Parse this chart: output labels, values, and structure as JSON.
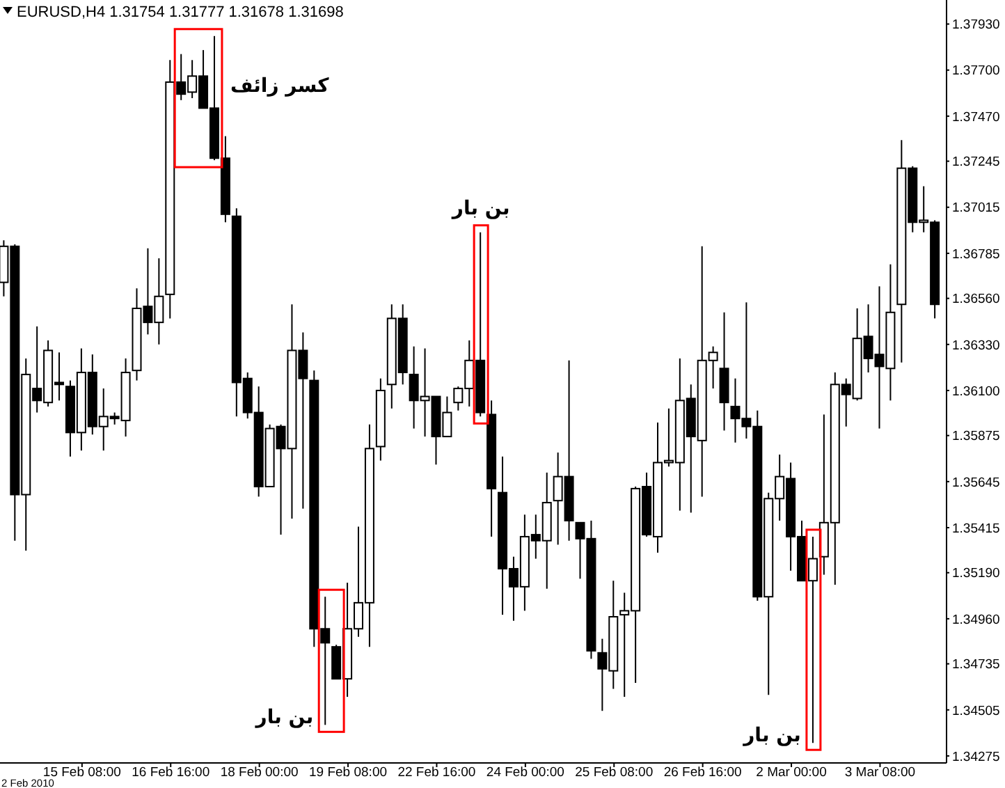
{
  "chart_data": {
    "type": "candlestick",
    "title": "EURUSD,H4  1.31754 1.31777 1.31678 1.31698",
    "categories": [
      null,
      null,
      null,
      null,
      null,
      null,
      null,
      "15 Feb 08:00",
      null,
      null,
      null,
      null,
      null,
      null,
      null,
      "16 Feb 16:00",
      null,
      null,
      null,
      null,
      null,
      null,
      null,
      "18 Feb 00:00",
      null,
      null,
      null,
      null,
      null,
      null,
      null,
      "19 Feb 08:00",
      null,
      null,
      null,
      null,
      null,
      null,
      null,
      "22 Feb 16:00",
      null,
      null,
      null,
      null,
      null,
      null,
      null,
      "24 Feb 00:00",
      null,
      null,
      null,
      null,
      null,
      null,
      null,
      "25 Feb 08:00",
      null,
      null,
      null,
      null,
      null,
      null,
      null,
      "26 Feb 16:00",
      null,
      null,
      null,
      null,
      null,
      null,
      null,
      "2 Mar 00:00",
      null,
      null,
      null,
      null,
      null,
      null,
      null,
      "3 Mar 08:00",
      null,
      null,
      null,
      null,
      null
    ],
    "ohlc": [
      [
        1.3664,
        1.3685,
        1.3657,
        1.3682
      ],
      [
        1.3682,
        1.3683,
        1.3535,
        1.3558
      ],
      [
        1.3558,
        1.3626,
        1.353,
        1.3618
      ],
      [
        1.3611,
        1.3642,
        1.3599,
        1.3605
      ],
      [
        1.3604,
        1.3635,
        1.3602,
        1.363
      ],
      [
        1.3614,
        1.3629,
        1.3605,
        1.3613
      ],
      [
        1.3612,
        1.3615,
        1.3577,
        1.3589
      ],
      [
        1.3589,
        1.3631,
        1.358,
        1.3619
      ],
      [
        1.3619,
        1.3628,
        1.3588,
        1.3592
      ],
      [
        1.3592,
        1.3611,
        1.358,
        1.3597
      ],
      [
        1.3597,
        1.3599,
        1.3593,
        1.3596
      ],
      [
        1.3595,
        1.3626,
        1.3587,
        1.3619
      ],
      [
        1.362,
        1.3661,
        1.3615,
        1.3651
      ],
      [
        1.3652,
        1.3681,
        1.3638,
        1.3644
      ],
      [
        1.3644,
        1.3676,
        1.3633,
        1.3657
      ],
      [
        1.3658,
        1.3775,
        1.3646,
        1.3764
      ],
      [
        1.3764,
        1.3778,
        1.3755,
        1.3758
      ],
      [
        1.3759,
        1.3775,
        1.3756,
        1.3767
      ],
      [
        1.3767,
        1.378,
        1.3751,
        1.3751
      ],
      [
        1.3751,
        1.3787,
        1.3725,
        1.3726
      ],
      [
        1.3726,
        1.3737,
        1.3694,
        1.3698
      ],
      [
        1.3697,
        1.3701,
        1.3597,
        1.3614
      ],
      [
        1.3616,
        1.3619,
        1.3596,
        1.3599
      ],
      [
        1.3599,
        1.3612,
        1.3557,
        1.3562
      ],
      [
        1.3562,
        1.3593,
        1.3562,
        1.3591
      ],
      [
        1.3592,
        1.3593,
        1.3538,
        1.3581
      ],
      [
        1.3581,
        1.3653,
        1.3546,
        1.363
      ],
      [
        1.363,
        1.3639,
        1.3551,
        1.3616
      ],
      [
        1.3615,
        1.362,
        1.3482,
        1.3491
      ],
      [
        1.3491,
        1.3507,
        1.3443,
        1.3484
      ],
      [
        1.3482,
        1.3483,
        1.3466,
        1.3466
      ],
      [
        1.3466,
        1.3514,
        1.3457,
        1.3491
      ],
      [
        1.3491,
        1.3542,
        1.3487,
        1.3504
      ],
      [
        1.3504,
        1.3593,
        1.3482,
        1.3581
      ],
      [
        1.3582,
        1.3616,
        1.3575,
        1.361
      ],
      [
        1.3613,
        1.3653,
        1.3601,
        1.3646
      ],
      [
        1.3646,
        1.3653,
        1.3613,
        1.3619
      ],
      [
        1.3618,
        1.3632,
        1.3591,
        1.3605
      ],
      [
        1.3605,
        1.3631,
        1.3587,
        1.3607
      ],
      [
        1.3607,
        1.3607,
        1.3573,
        1.3587
      ],
      [
        1.3587,
        1.3607,
        1.3587,
        1.3599
      ],
      [
        1.3604,
        1.3612,
        1.36,
        1.3611
      ],
      [
        1.3611,
        1.3635,
        1.3602,
        1.3625
      ],
      [
        1.3625,
        1.3689,
        1.3597,
        1.3599
      ],
      [
        1.3598,
        1.3605,
        1.3537,
        1.3561
      ],
      [
        1.3559,
        1.3577,
        1.3498,
        1.3521
      ],
      [
        1.3521,
        1.3527,
        1.3495,
        1.3512
      ],
      [
        1.3512,
        1.3548,
        1.35,
        1.3537
      ],
      [
        1.3538,
        1.3548,
        1.3526,
        1.3535
      ],
      [
        1.3535,
        1.3569,
        1.3511,
        1.3554
      ],
      [
        1.3555,
        1.3579,
        1.3533,
        1.3567
      ],
      [
        1.3567,
        1.3625,
        1.3535,
        1.3545
      ],
      [
        1.3544,
        1.3544,
        1.3516,
        1.3536
      ],
      [
        1.3536,
        1.3545,
        1.3476,
        1.348
      ],
      [
        1.3479,
        1.3486,
        1.345,
        1.3471
      ],
      [
        1.347,
        1.3515,
        1.3461,
        1.3497
      ],
      [
        1.3498,
        1.3509,
        1.3457,
        1.35
      ],
      [
        1.35,
        1.3562,
        1.3464,
        1.3561
      ],
      [
        1.3562,
        1.3569,
        1.3537,
        1.3538
      ],
      [
        1.3537,
        1.3594,
        1.3529,
        1.3574
      ],
      [
        1.3574,
        1.3601,
        1.3572,
        1.3575
      ],
      [
        1.3574,
        1.3626,
        1.355,
        1.3605
      ],
      [
        1.3606,
        1.3613,
        1.3549,
        1.3587
      ],
      [
        1.3585,
        1.3682,
        1.3557,
        1.3625
      ],
      [
        1.3625,
        1.3632,
        1.3611,
        1.3629
      ],
      [
        1.3621,
        1.3649,
        1.359,
        1.3604
      ],
      [
        1.3602,
        1.3616,
        1.3584,
        1.3596
      ],
      [
        1.3596,
        1.3654,
        1.3586,
        1.3592
      ],
      [
        1.3592,
        1.36,
        1.3505,
        1.3507
      ],
      [
        1.3507,
        1.3559,
        1.3458,
        1.3556
      ],
      [
        1.3556,
        1.3578,
        1.3545,
        1.3567
      ],
      [
        1.3566,
        1.3574,
        1.352,
        1.3537
      ],
      [
        1.3537,
        1.3545,
        1.3515,
        1.3515
      ],
      [
        1.3515,
        1.3537,
        1.3434,
        1.3526
      ],
      [
        1.3527,
        1.3598,
        1.3518,
        1.3544
      ],
      [
        1.3544,
        1.3619,
        1.3513,
        1.3613
      ],
      [
        1.3613,
        1.3616,
        1.3592,
        1.3608
      ],
      [
        1.3606,
        1.3651,
        1.3605,
        1.3636
      ],
      [
        1.3637,
        1.3653,
        1.3619,
        1.3626
      ],
      [
        1.3628,
        1.3662,
        1.3591,
        1.3622
      ],
      [
        1.3621,
        1.3673,
        1.3605,
        1.3649
      ],
      [
        1.3653,
        1.3735,
        1.3624,
        1.3721
      ],
      [
        1.3721,
        1.3722,
        1.3689,
        1.3694
      ],
      [
        1.3694,
        1.3712,
        1.3689,
        1.3695
      ],
      [
        1.3694,
        1.3695,
        1.3646,
        1.3653
      ]
    ],
    "ylim": [
      1.3424,
      1.3805
    ],
    "yticks": [
      {
        "value": 1.3793,
        "label": "1.37930"
      },
      {
        "value": 1.377,
        "label": "1.37700"
      },
      {
        "value": 1.3747,
        "label": "1.37470"
      },
      {
        "value": 1.37245,
        "label": "1.37245"
      },
      {
        "value": 1.37015,
        "label": "1.37015"
      },
      {
        "value": 1.36785,
        "label": "1.36785"
      },
      {
        "value": 1.3656,
        "label": "1.36560"
      },
      {
        "value": 1.3633,
        "label": "1.36330"
      },
      {
        "value": 1.361,
        "label": "1.36100"
      },
      {
        "value": 1.35875,
        "label": "1.35875"
      },
      {
        "value": 1.35645,
        "label": "1.35645"
      },
      {
        "value": 1.35415,
        "label": "1.35415"
      },
      {
        "value": 1.3519,
        "label": "1.35190"
      },
      {
        "value": 1.3496,
        "label": "1.34960"
      },
      {
        "value": 1.34735,
        "label": "1.34735"
      },
      {
        "value": 1.34505,
        "label": "1.34505"
      },
      {
        "value": 1.34275,
        "label": "1.34275"
      }
    ],
    "annotations": [
      "2 Feb 2010",
      "کسر زائف",
      "بن بار",
      "بن بار",
      "بن بار"
    ],
    "grid": false
  }
}
